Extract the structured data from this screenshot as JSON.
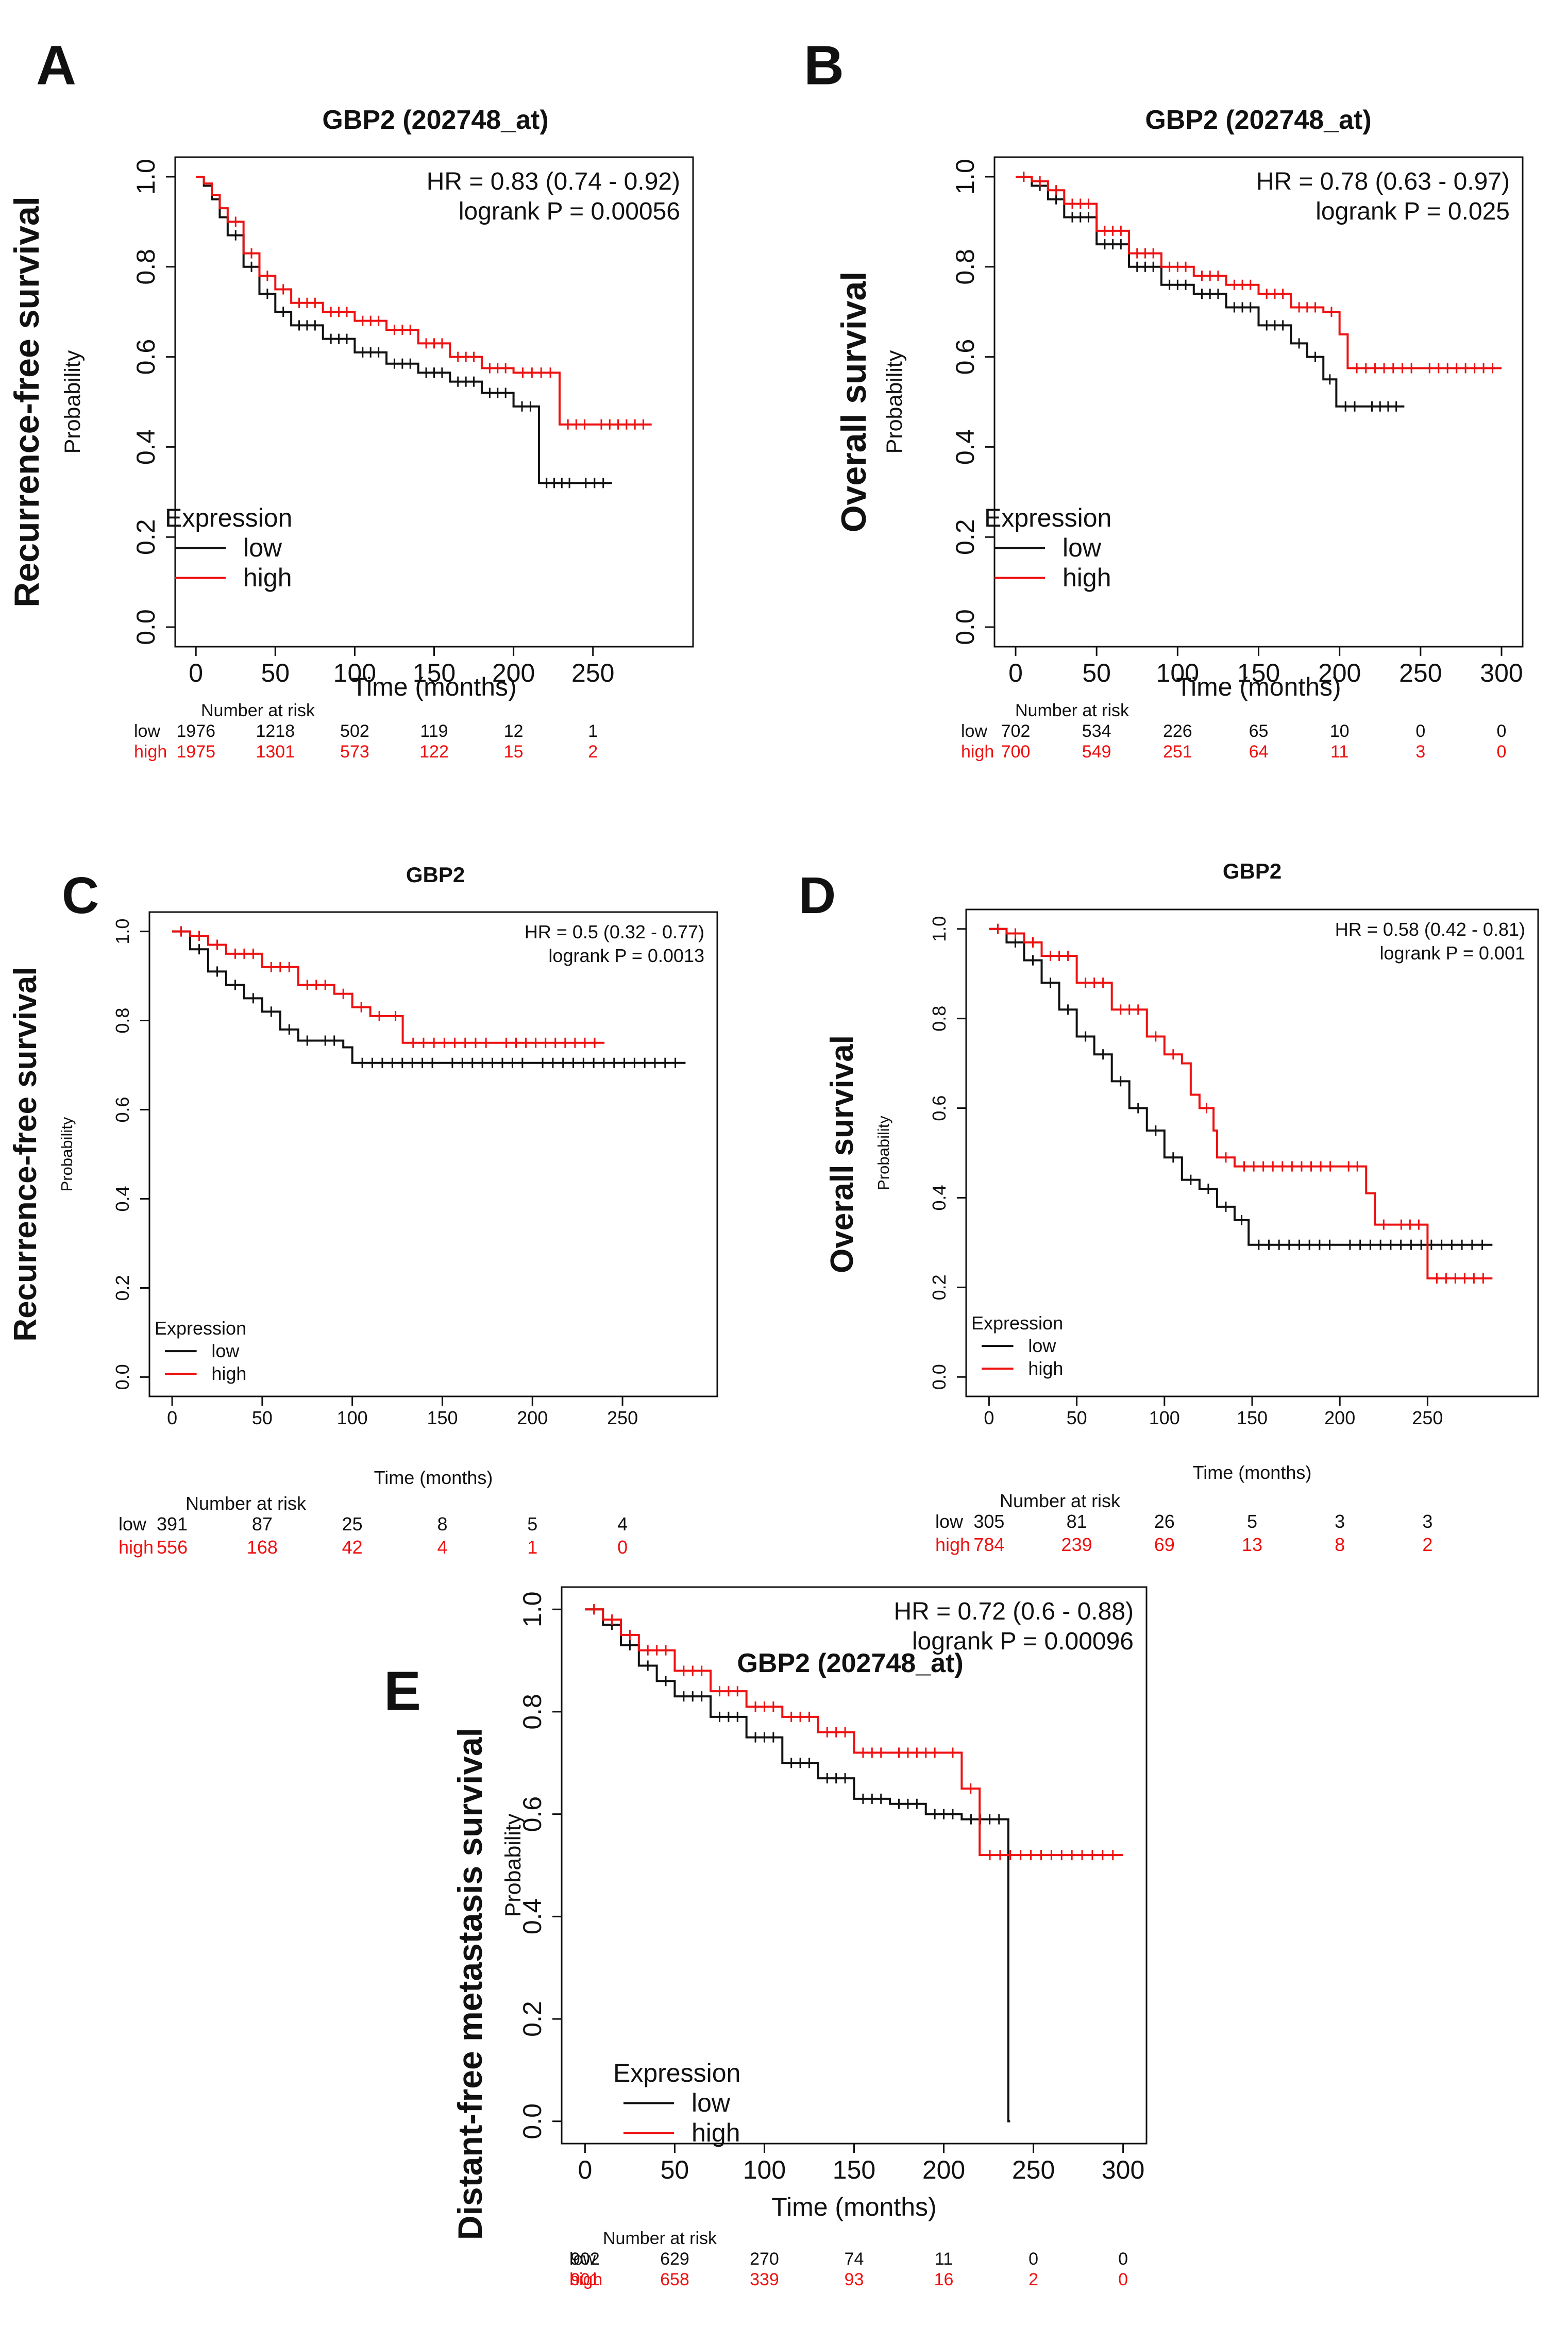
{
  "figure": {
    "caption_letters": [
      "A",
      "B",
      "C",
      "D",
      "E"
    ]
  },
  "colors": {
    "low": "#111111",
    "high": "#ee1111",
    "axis": "#111111"
  },
  "chart_data": [
    {
      "panel": "A",
      "type": "line",
      "title": "GBP2 (202748_at)",
      "outer_ylabel": "Recurrence-free survival",
      "ylabel": "Probability",
      "xlabel": "Time (months)",
      "xlim": [
        0,
        300
      ],
      "ylim": [
        0,
        1
      ],
      "xticks": [
        0,
        50,
        100,
        150,
        200,
        250
      ],
      "yticks": [
        0.0,
        0.2,
        0.4,
        0.6,
        0.8,
        1.0
      ],
      "yticklabels": [
        "0.0",
        "0.2",
        "0.4",
        "0.6",
        "0.8",
        "1.0"
      ],
      "hr_text": "HR = 0.83 (0.74 - 0.92)",
      "p_text": "logrank P = 0.00056",
      "legend_title": "Expression",
      "legend_position": "bottom-left",
      "series": [
        {
          "name": "low",
          "x": [
            0,
            5,
            10,
            15,
            20,
            30,
            40,
            50,
            60,
            80,
            100,
            120,
            140,
            160,
            180,
            200,
            216,
            216,
            240,
            262
          ],
          "y": [
            1.0,
            0.98,
            0.95,
            0.91,
            0.87,
            0.8,
            0.74,
            0.7,
            0.67,
            0.64,
            0.61,
            0.585,
            0.565,
            0.545,
            0.52,
            0.49,
            0.48,
            0.32,
            0.32,
            0.32
          ]
        },
        {
          "name": "high",
          "x": [
            0,
            5,
            10,
            15,
            20,
            30,
            40,
            50,
            60,
            80,
            100,
            120,
            140,
            160,
            180,
            200,
            229,
            229,
            250,
            287
          ],
          "y": [
            1.0,
            0.985,
            0.96,
            0.93,
            0.9,
            0.83,
            0.78,
            0.75,
            0.72,
            0.7,
            0.68,
            0.66,
            0.63,
            0.6,
            0.575,
            0.565,
            0.565,
            0.45,
            0.45,
            0.45
          ]
        }
      ],
      "risk": {
        "header": "Number at risk",
        "times": [
          0,
          50,
          100,
          150,
          200,
          250
        ],
        "rows": [
          {
            "label": "low",
            "values": [
              "1976",
              "1218",
              "502",
              "119",
              "12",
              "1"
            ]
          },
          {
            "label": "high",
            "values": [
              "1975",
              "1301",
              "573",
              "122",
              "15",
              "2"
            ]
          }
        ]
      }
    },
    {
      "panel": "B",
      "type": "line",
      "title": "GBP2 (202748_at)",
      "outer_ylabel": "Overall survival",
      "ylabel": "Probability",
      "xlabel": "Time (months)",
      "xlim": [
        0,
        300
      ],
      "ylim": [
        0,
        1
      ],
      "xticks": [
        0,
        50,
        100,
        150,
        200,
        250,
        300
      ],
      "yticks": [
        0.0,
        0.2,
        0.4,
        0.6,
        0.8,
        1.0
      ],
      "yticklabels": [
        "0.0",
        "0.2",
        "0.4",
        "0.6",
        "0.8",
        "1.0"
      ],
      "hr_text": "HR = 0.78 (0.63 - 0.97)",
      "p_text": "logrank P = 0.025",
      "legend_title": "Expression",
      "legend_position": "bottom-left",
      "series": [
        {
          "name": "low",
          "x": [
            0,
            10,
            20,
            30,
            50,
            70,
            90,
            110,
            130,
            150,
            170,
            180,
            190,
            198,
            198,
            215,
            240
          ],
          "y": [
            1.0,
            0.98,
            0.95,
            0.91,
            0.85,
            0.8,
            0.76,
            0.74,
            0.71,
            0.67,
            0.63,
            0.6,
            0.55,
            0.52,
            0.49,
            0.49,
            0.49
          ]
        },
        {
          "name": "high",
          "x": [
            0,
            10,
            20,
            30,
            50,
            70,
            90,
            110,
            130,
            150,
            170,
            190,
            200,
            200,
            205,
            205,
            250,
            300
          ],
          "y": [
            1.0,
            0.99,
            0.97,
            0.94,
            0.88,
            0.83,
            0.8,
            0.78,
            0.76,
            0.74,
            0.71,
            0.7,
            0.7,
            0.65,
            0.65,
            0.575,
            0.575,
            0.575
          ]
        }
      ],
      "risk": {
        "header": "Number at risk",
        "times": [
          0,
          50,
          100,
          150,
          200,
          250,
          300
        ],
        "rows": [
          {
            "label": "low",
            "values": [
              "702",
              "534",
              "226",
              "65",
              "10",
              "0",
              "0"
            ]
          },
          {
            "label": "high",
            "values": [
              "700",
              "549",
              "251",
              "64",
              "11",
              "3",
              "0"
            ]
          }
        ]
      }
    },
    {
      "panel": "C",
      "type": "line",
      "title": "GBP2",
      "outer_ylabel": "Recurrence-free survival",
      "ylabel": "Probability",
      "xlabel": "Time (months)",
      "xlim": [
        0,
        290
      ],
      "ylim": [
        0,
        1
      ],
      "xticks": [
        0,
        50,
        100,
        150,
        200,
        250
      ],
      "yticks": [
        0.0,
        0.2,
        0.4,
        0.6,
        0.8,
        1.0
      ],
      "yticklabels": [
        "0.0",
        "0.2",
        "0.4",
        "0.6",
        "0.8",
        "1.0"
      ],
      "hr_text": "HR = 0.5 (0.32 - 0.77)",
      "p_text": "logrank P = 0.0013",
      "legend_title": "Expression",
      "legend_position": "bottom-left",
      "series": [
        {
          "name": "low",
          "x": [
            0,
            10,
            20,
            30,
            40,
            50,
            60,
            70,
            80,
            95,
            100,
            150,
            200,
            285
          ],
          "y": [
            1.0,
            0.96,
            0.91,
            0.88,
            0.85,
            0.82,
            0.78,
            0.755,
            0.755,
            0.74,
            0.705,
            0.705,
            0.705,
            0.705
          ]
        },
        {
          "name": "high",
          "x": [
            0,
            10,
            20,
            30,
            50,
            70,
            90,
            100,
            110,
            120,
            128,
            128,
            180,
            240
          ],
          "y": [
            1.0,
            0.99,
            0.97,
            0.95,
            0.92,
            0.88,
            0.86,
            0.83,
            0.81,
            0.81,
            0.81,
            0.75,
            0.75,
            0.75
          ]
        }
      ],
      "risk": {
        "header": "Number at risk",
        "times": [
          0,
          50,
          100,
          150,
          200,
          250
        ],
        "rows": [
          {
            "label": "low",
            "values": [
              "391",
              "87",
              "25",
              "8",
              "5",
              "4"
            ]
          },
          {
            "label": "high",
            "values": [
              "556",
              "168",
              "42",
              "4",
              "1",
              "0"
            ]
          }
        ]
      }
    },
    {
      "panel": "D",
      "type": "line",
      "title": "GBP2",
      "outer_ylabel": "Overall survival",
      "ylabel": "Probability",
      "xlabel": "Time (months)",
      "xlim": [
        0,
        300
      ],
      "ylim": [
        0,
        1
      ],
      "xticks": [
        0,
        50,
        100,
        150,
        200,
        250
      ],
      "yticks": [
        0.0,
        0.2,
        0.4,
        0.6,
        0.8,
        1.0
      ],
      "yticklabels": [
        "0.0",
        "0.2",
        "0.4",
        "0.6",
        "0.8",
        "1.0"
      ],
      "hr_text": "HR = 0.58 (0.42 - 0.81)",
      "p_text": "logrank P = 0.001",
      "legend_title": "Expression",
      "legend_position": "bottom-left",
      "series": [
        {
          "name": "low",
          "x": [
            0,
            10,
            20,
            30,
            40,
            50,
            60,
            70,
            80,
            90,
            100,
            110,
            120,
            130,
            140,
            148,
            148,
            200,
            287
          ],
          "y": [
            1.0,
            0.97,
            0.93,
            0.88,
            0.82,
            0.76,
            0.72,
            0.66,
            0.6,
            0.55,
            0.49,
            0.44,
            0.42,
            0.38,
            0.35,
            0.35,
            0.295,
            0.295,
            0.295
          ]
        },
        {
          "name": "high",
          "x": [
            0,
            10,
            20,
            30,
            50,
            70,
            90,
            100,
            110,
            115,
            120,
            128,
            130,
            140,
            200,
            215,
            215,
            220,
            230,
            250,
            250,
            287
          ],
          "y": [
            1.0,
            0.99,
            0.97,
            0.94,
            0.88,
            0.82,
            0.76,
            0.72,
            0.7,
            0.63,
            0.6,
            0.55,
            0.49,
            0.47,
            0.47,
            0.47,
            0.41,
            0.34,
            0.34,
            0.34,
            0.22,
            0.22
          ]
        }
      ],
      "risk": {
        "header": "Number at risk",
        "times": [
          0,
          50,
          100,
          150,
          200,
          250
        ],
        "rows": [
          {
            "label": "low",
            "values": [
              "305",
              "81",
              "26",
              "5",
              "3",
              "3"
            ]
          },
          {
            "label": "high",
            "values": [
              "784",
              "239",
              "69",
              "13",
              "8",
              "2"
            ]
          }
        ]
      }
    },
    {
      "panel": "E",
      "type": "line",
      "title": "GBP2 (202748_at)",
      "outer_ylabel": "Distant-free metastasis survival",
      "ylabel": "Probability",
      "xlabel": "Time (months)",
      "xlim": [
        0,
        300
      ],
      "ylim": [
        0,
        1
      ],
      "xticks": [
        0,
        50,
        100,
        150,
        200,
        250,
        300
      ],
      "yticks": [
        0.0,
        0.2,
        0.4,
        0.6,
        0.8,
        1.0
      ],
      "yticklabels": [
        "0.0",
        "0.2",
        "0.4",
        "0.6",
        "0.8",
        "1.0"
      ],
      "hr_text": "HR = 0.72 (0.6 - 0.88)",
      "p_text": "logrank P = 0.00096",
      "legend_title": "Expression",
      "legend_position": "bottom-left",
      "series": [
        {
          "name": "low",
          "x": [
            0,
            10,
            20,
            30,
            40,
            50,
            70,
            90,
            110,
            130,
            150,
            170,
            190,
            210,
            236,
            236,
            237
          ],
          "y": [
            1.0,
            0.97,
            0.93,
            0.89,
            0.86,
            0.83,
            0.79,
            0.75,
            0.7,
            0.67,
            0.63,
            0.62,
            0.6,
            0.59,
            0.59,
            0.0,
            0.0
          ]
        },
        {
          "name": "high",
          "x": [
            0,
            10,
            20,
            30,
            50,
            70,
            90,
            110,
            130,
            150,
            170,
            200,
            210,
            220,
            220,
            300
          ],
          "y": [
            1.0,
            0.98,
            0.95,
            0.92,
            0.88,
            0.84,
            0.81,
            0.79,
            0.76,
            0.72,
            0.72,
            0.72,
            0.65,
            0.65,
            0.52,
            0.52
          ]
        }
      ],
      "risk": {
        "header": "Number at risk",
        "times": [
          0,
          50,
          100,
          150,
          200,
          250,
          300
        ],
        "rows": [
          {
            "label": "low",
            "values": [
              "902",
              "629",
              "270",
              "74",
              "11",
              "0",
              "0"
            ]
          },
          {
            "label": "high",
            "values": [
              "901",
              "658",
              "339",
              "93",
              "16",
              "2",
              "0"
            ]
          }
        ]
      }
    }
  ]
}
